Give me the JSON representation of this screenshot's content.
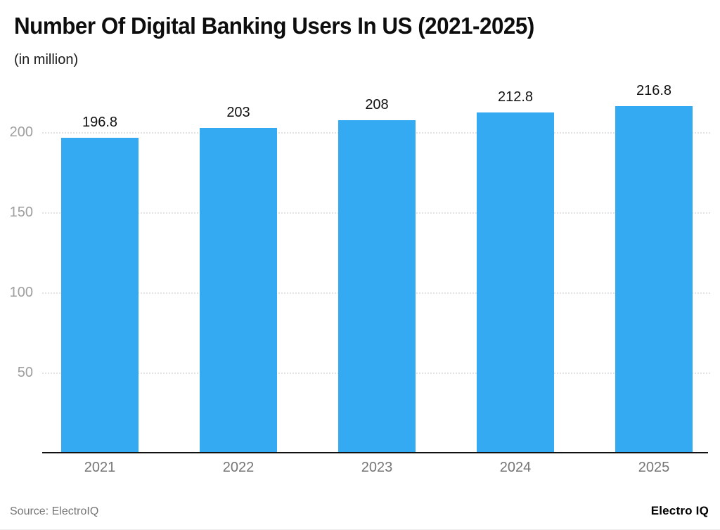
{
  "chart_data": {
    "type": "bar",
    "title": "Number Of Digital Banking Users In US (2021-2025)",
    "subtitle": "(in million)",
    "categories": [
      "2021",
      "2022",
      "2023",
      "2024",
      "2025"
    ],
    "values": [
      196.8,
      203,
      208,
      212.8,
      216.8
    ],
    "value_labels": [
      "196.8",
      "203",
      "208",
      "212.8",
      "216.8"
    ],
    "xlabel": "",
    "ylabel": "",
    "yticks": [
      50,
      100,
      150,
      200
    ],
    "ylim": [
      0,
      232.5
    ],
    "grid": "horizontal-dotted",
    "legend": "none",
    "bar_color": "#34aaf3"
  },
  "colors": {
    "bar": "#34aaf3",
    "axis_line": "#111111",
    "gridline": "#e2e2e2",
    "y_tick_text": "#9e9e9e",
    "x_tick_text": "#757575",
    "data_label_text": "#111111"
  },
  "footer": {
    "source": "Source: ElectroIQ",
    "brand": "Electro IQ"
  }
}
